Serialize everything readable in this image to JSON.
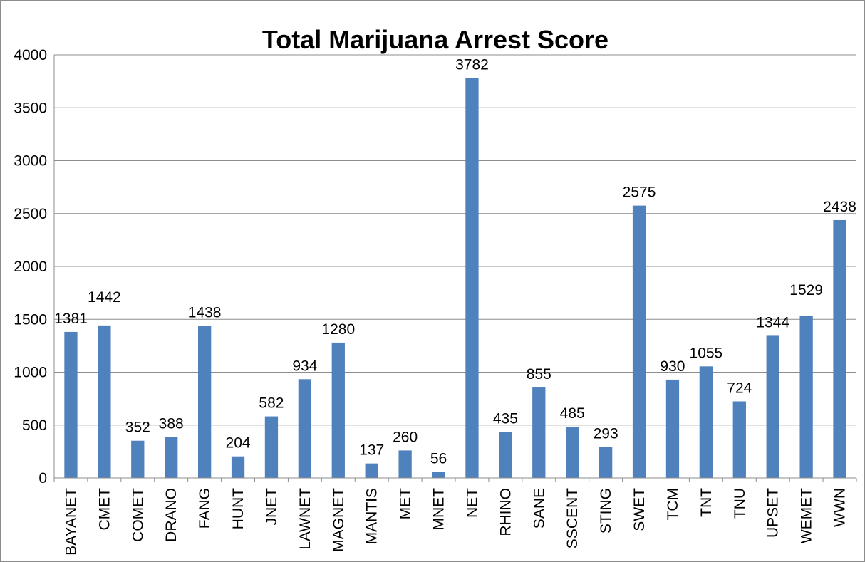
{
  "chart_data": {
    "type": "bar",
    "title": "Total Marijuana Arrest Score",
    "xlabel": "",
    "ylabel": "",
    "ylim": [
      0,
      4000
    ],
    "yticks": [
      0,
      500,
      1000,
      1500,
      2000,
      2500,
      3000,
      3500,
      4000
    ],
    "grid": true,
    "legend": "none",
    "categories": [
      "BAYANET",
      "CMET",
      "COMET",
      "DRANO",
      "FANG",
      "HUNT",
      "JNET",
      "LAWNET",
      "MAGNET",
      "MANTIS",
      "MET",
      "MNET",
      "NET",
      "RHINO",
      "SANE",
      "SSCENT",
      "STING",
      "SWET",
      "TCM",
      "TNT",
      "TNU",
      "UPSET",
      "WEMET",
      "WWN"
    ],
    "values": [
      1381,
      1442,
      352,
      388,
      1438,
      204,
      582,
      934,
      1280,
      137,
      260,
      56,
      3782,
      435,
      855,
      485,
      293,
      2575,
      930,
      1055,
      724,
      1344,
      1529,
      2438
    ],
    "bar_color": "#4f81bd"
  }
}
